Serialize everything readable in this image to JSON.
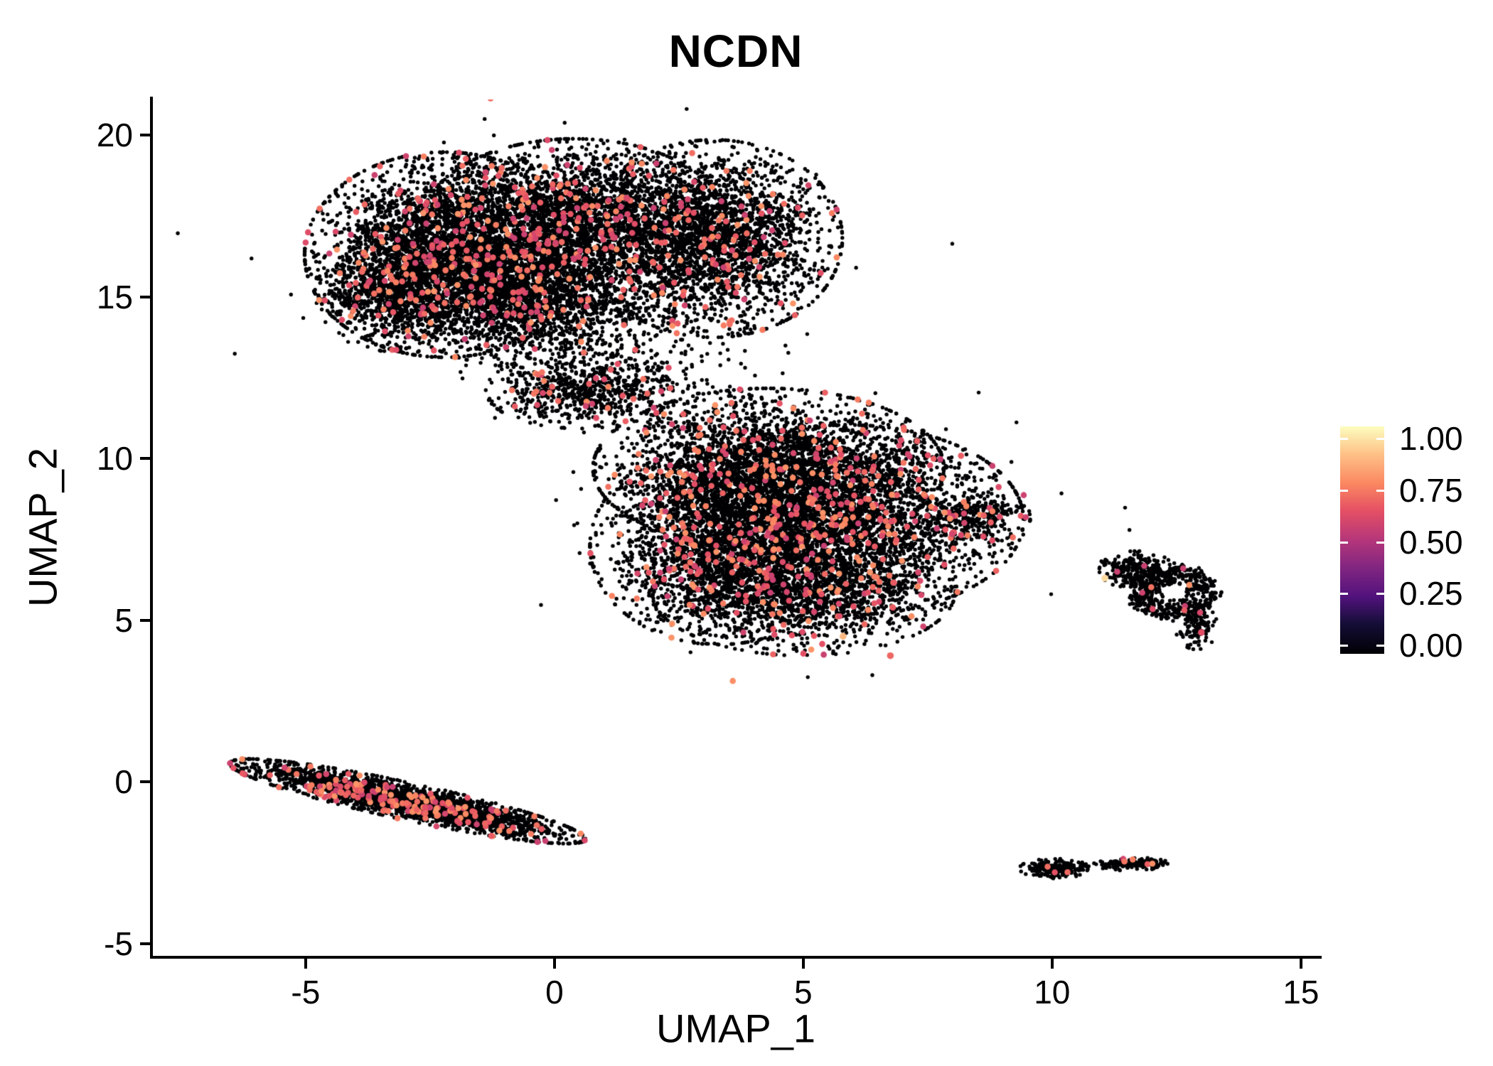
{
  "chart_data": {
    "type": "scatter",
    "title": "NCDN",
    "xlabel": "UMAP_1",
    "ylabel": "UMAP_2",
    "x_range": [
      -8.07,
      15.36
    ],
    "y_range": [
      -5.38,
      21.1
    ],
    "x_ticks": [
      {
        "v": -5,
        "label": "-5"
      },
      {
        "v": 0,
        "label": "0"
      },
      {
        "v": 5,
        "label": "5"
      },
      {
        "v": 10,
        "label": "10"
      },
      {
        "v": 15,
        "label": "15"
      }
    ],
    "y_ticks": [
      {
        "v": 20,
        "label": "20"
      },
      {
        "v": 15,
        "label": "15"
      },
      {
        "v": 10,
        "label": "10"
      },
      {
        "v": 5,
        "label": "5"
      },
      {
        "v": 0,
        "label": "0"
      },
      {
        "v": -5,
        "label": "-5"
      }
    ],
    "grid": false,
    "background": "#ffffff",
    "legend_position": "right",
    "colorbar": {
      "ticks": [
        "1.00",
        "0.75",
        "0.50",
        "0.25",
        "0.00"
      ],
      "values": [
        1.0,
        0.75,
        0.5,
        0.25,
        0.0
      ]
    },
    "colormap": [
      {
        "pos": 0.0,
        "color": "#000004"
      },
      {
        "pos": 0.13,
        "color": "#140e36"
      },
      {
        "pos": 0.25,
        "color": "#51127c"
      },
      {
        "pos": 0.38,
        "color": "#822681"
      },
      {
        "pos": 0.5,
        "color": "#b5367a"
      },
      {
        "pos": 0.63,
        "color": "#e55064"
      },
      {
        "pos": 0.75,
        "color": "#fb8861"
      },
      {
        "pos": 0.88,
        "color": "#fec287"
      },
      {
        "pos": 1.0,
        "color": "#fcfdbf"
      }
    ],
    "points": {
      "zero_color": "#000004",
      "base_radius": 2.7,
      "pos_radius": 4.3,
      "pos_value_min": 0.55,
      "pos_value_max": 0.78
    },
    "seed": 42,
    "clusters": [
      {
        "name": "upper-left-lobe",
        "cx": -2.2,
        "cy": 16.3,
        "sx": 1.2,
        "sy": 1.35,
        "n": 3800,
        "pf": 0.05
      },
      {
        "name": "upper-mid-lobe",
        "cx": 0.4,
        "cy": 17.3,
        "sx": 1.3,
        "sy": 1.1,
        "n": 3000,
        "pf": 0.05
      },
      {
        "name": "upper-right-lobe",
        "cx": 3.2,
        "cy": 16.8,
        "sx": 1.1,
        "sy": 1.3,
        "n": 2600,
        "pf": 0.04
      },
      {
        "name": "upper-lower-edge",
        "cx": -0.4,
        "cy": 14.8,
        "sx": 1.2,
        "sy": 0.85,
        "n": 1600,
        "pf": 0.04
      },
      {
        "name": "upper-left-bulge",
        "cx": -3.4,
        "cy": 15.2,
        "sx": 0.6,
        "sy": 0.8,
        "n": 600,
        "pf": 0.05
      },
      {
        "name": "bridge-clump",
        "cx": 0.5,
        "cy": 12.1,
        "sx": 0.8,
        "sy": 0.5,
        "n": 600,
        "pf": 0.04
      },
      {
        "name": "bridge-scatter",
        "cx": 1.6,
        "cy": 12.5,
        "sx": 1.2,
        "sy": 0.8,
        "n": 260,
        "pf": 0.03,
        "clamp": 2.8
      },
      {
        "name": "upper-halo",
        "cx": 0.2,
        "cy": 16.4,
        "sx": 2.6,
        "sy": 2.1,
        "n": 140,
        "pf": 0.03,
        "clamp": 3.0
      },
      {
        "name": "center-upper-lobe",
        "cx": 4.3,
        "cy": 9.7,
        "sx": 1.5,
        "sy": 1.05,
        "n": 2800,
        "pf": 0.06
      },
      {
        "name": "center-right-lobe",
        "cx": 5.9,
        "cy": 8.1,
        "sx": 1.5,
        "sy": 1.25,
        "n": 3000,
        "pf": 0.055
      },
      {
        "name": "center-left-lobe",
        "cx": 3.3,
        "cy": 7.3,
        "sx": 1.1,
        "sy": 1.3,
        "n": 2200,
        "pf": 0.05
      },
      {
        "name": "center-lower-lobe",
        "cx": 5.0,
        "cy": 5.9,
        "sx": 1.3,
        "sy": 0.85,
        "n": 1500,
        "pf": 0.05
      },
      {
        "name": "center-right-tip",
        "cx": 8.4,
        "cy": 8.2,
        "sx": 0.5,
        "sy": 0.3,
        "n": 260,
        "pf": 0.05
      },
      {
        "name": "center-halo",
        "cx": 5.0,
        "cy": 8.0,
        "sx": 2.5,
        "sy": 2.1,
        "n": 140,
        "pf": 0.03,
        "clamp": 3.0
      },
      {
        "name": "lower-left-band",
        "cx": -2.95,
        "cy": -0.6,
        "sx": 1.6,
        "sy": 0.24,
        "rot": -18.5,
        "n": 2600,
        "pf": 0.07
      },
      {
        "name": "right-ring",
        "shape": "ring",
        "cx": 12.45,
        "cy": 5.85,
        "r0": 0.3,
        "r1": 0.82,
        "ax": 1.05,
        "ay": 1.0,
        "jitter": 0.07,
        "n": 520,
        "pf": 0.015
      },
      {
        "name": "right-ring-west-blob",
        "cx": 11.7,
        "cy": 6.55,
        "sx": 0.32,
        "sy": 0.25,
        "n": 240,
        "pf": 0.01
      },
      {
        "name": "right-ring-tail",
        "cx": 12.9,
        "cy": 4.8,
        "sx": 0.18,
        "sy": 0.3,
        "n": 110,
        "pf": 0.02
      },
      {
        "name": "right-ring-outlier",
        "cx": 11.12,
        "cy": 6.75,
        "sx": 0.07,
        "sy": 0.05,
        "n": 10,
        "pf": 0
      },
      {
        "name": "bottom-right-a",
        "cx": 10.05,
        "cy": -2.68,
        "sx": 0.3,
        "sy": 0.13,
        "n": 230,
        "pf": 0.008
      },
      {
        "name": "bottom-right-dot",
        "cx": 10.62,
        "cy": -2.6,
        "sx": 0.05,
        "sy": 0.04,
        "n": 8,
        "pf": 0
      },
      {
        "name": "bottom-right-b",
        "cx": 11.35,
        "cy": -2.55,
        "sx": 0.24,
        "sy": 0.08,
        "n": 90,
        "pf": 0.02
      },
      {
        "name": "bottom-right-c",
        "cx": 11.9,
        "cy": -2.52,
        "sx": 0.2,
        "sy": 0.08,
        "n": 80,
        "pf": 0.02
      }
    ],
    "highlights": [
      {
        "x": 6.75,
        "y": 3.9,
        "v": 0.68
      },
      {
        "x": 11.06,
        "y": 6.3,
        "v": 0.93
      },
      {
        "x": 13.0,
        "y": 4.62,
        "v": 0.62
      },
      {
        "x": 5.8,
        "y": 4.5,
        "v": 0.86
      }
    ]
  }
}
